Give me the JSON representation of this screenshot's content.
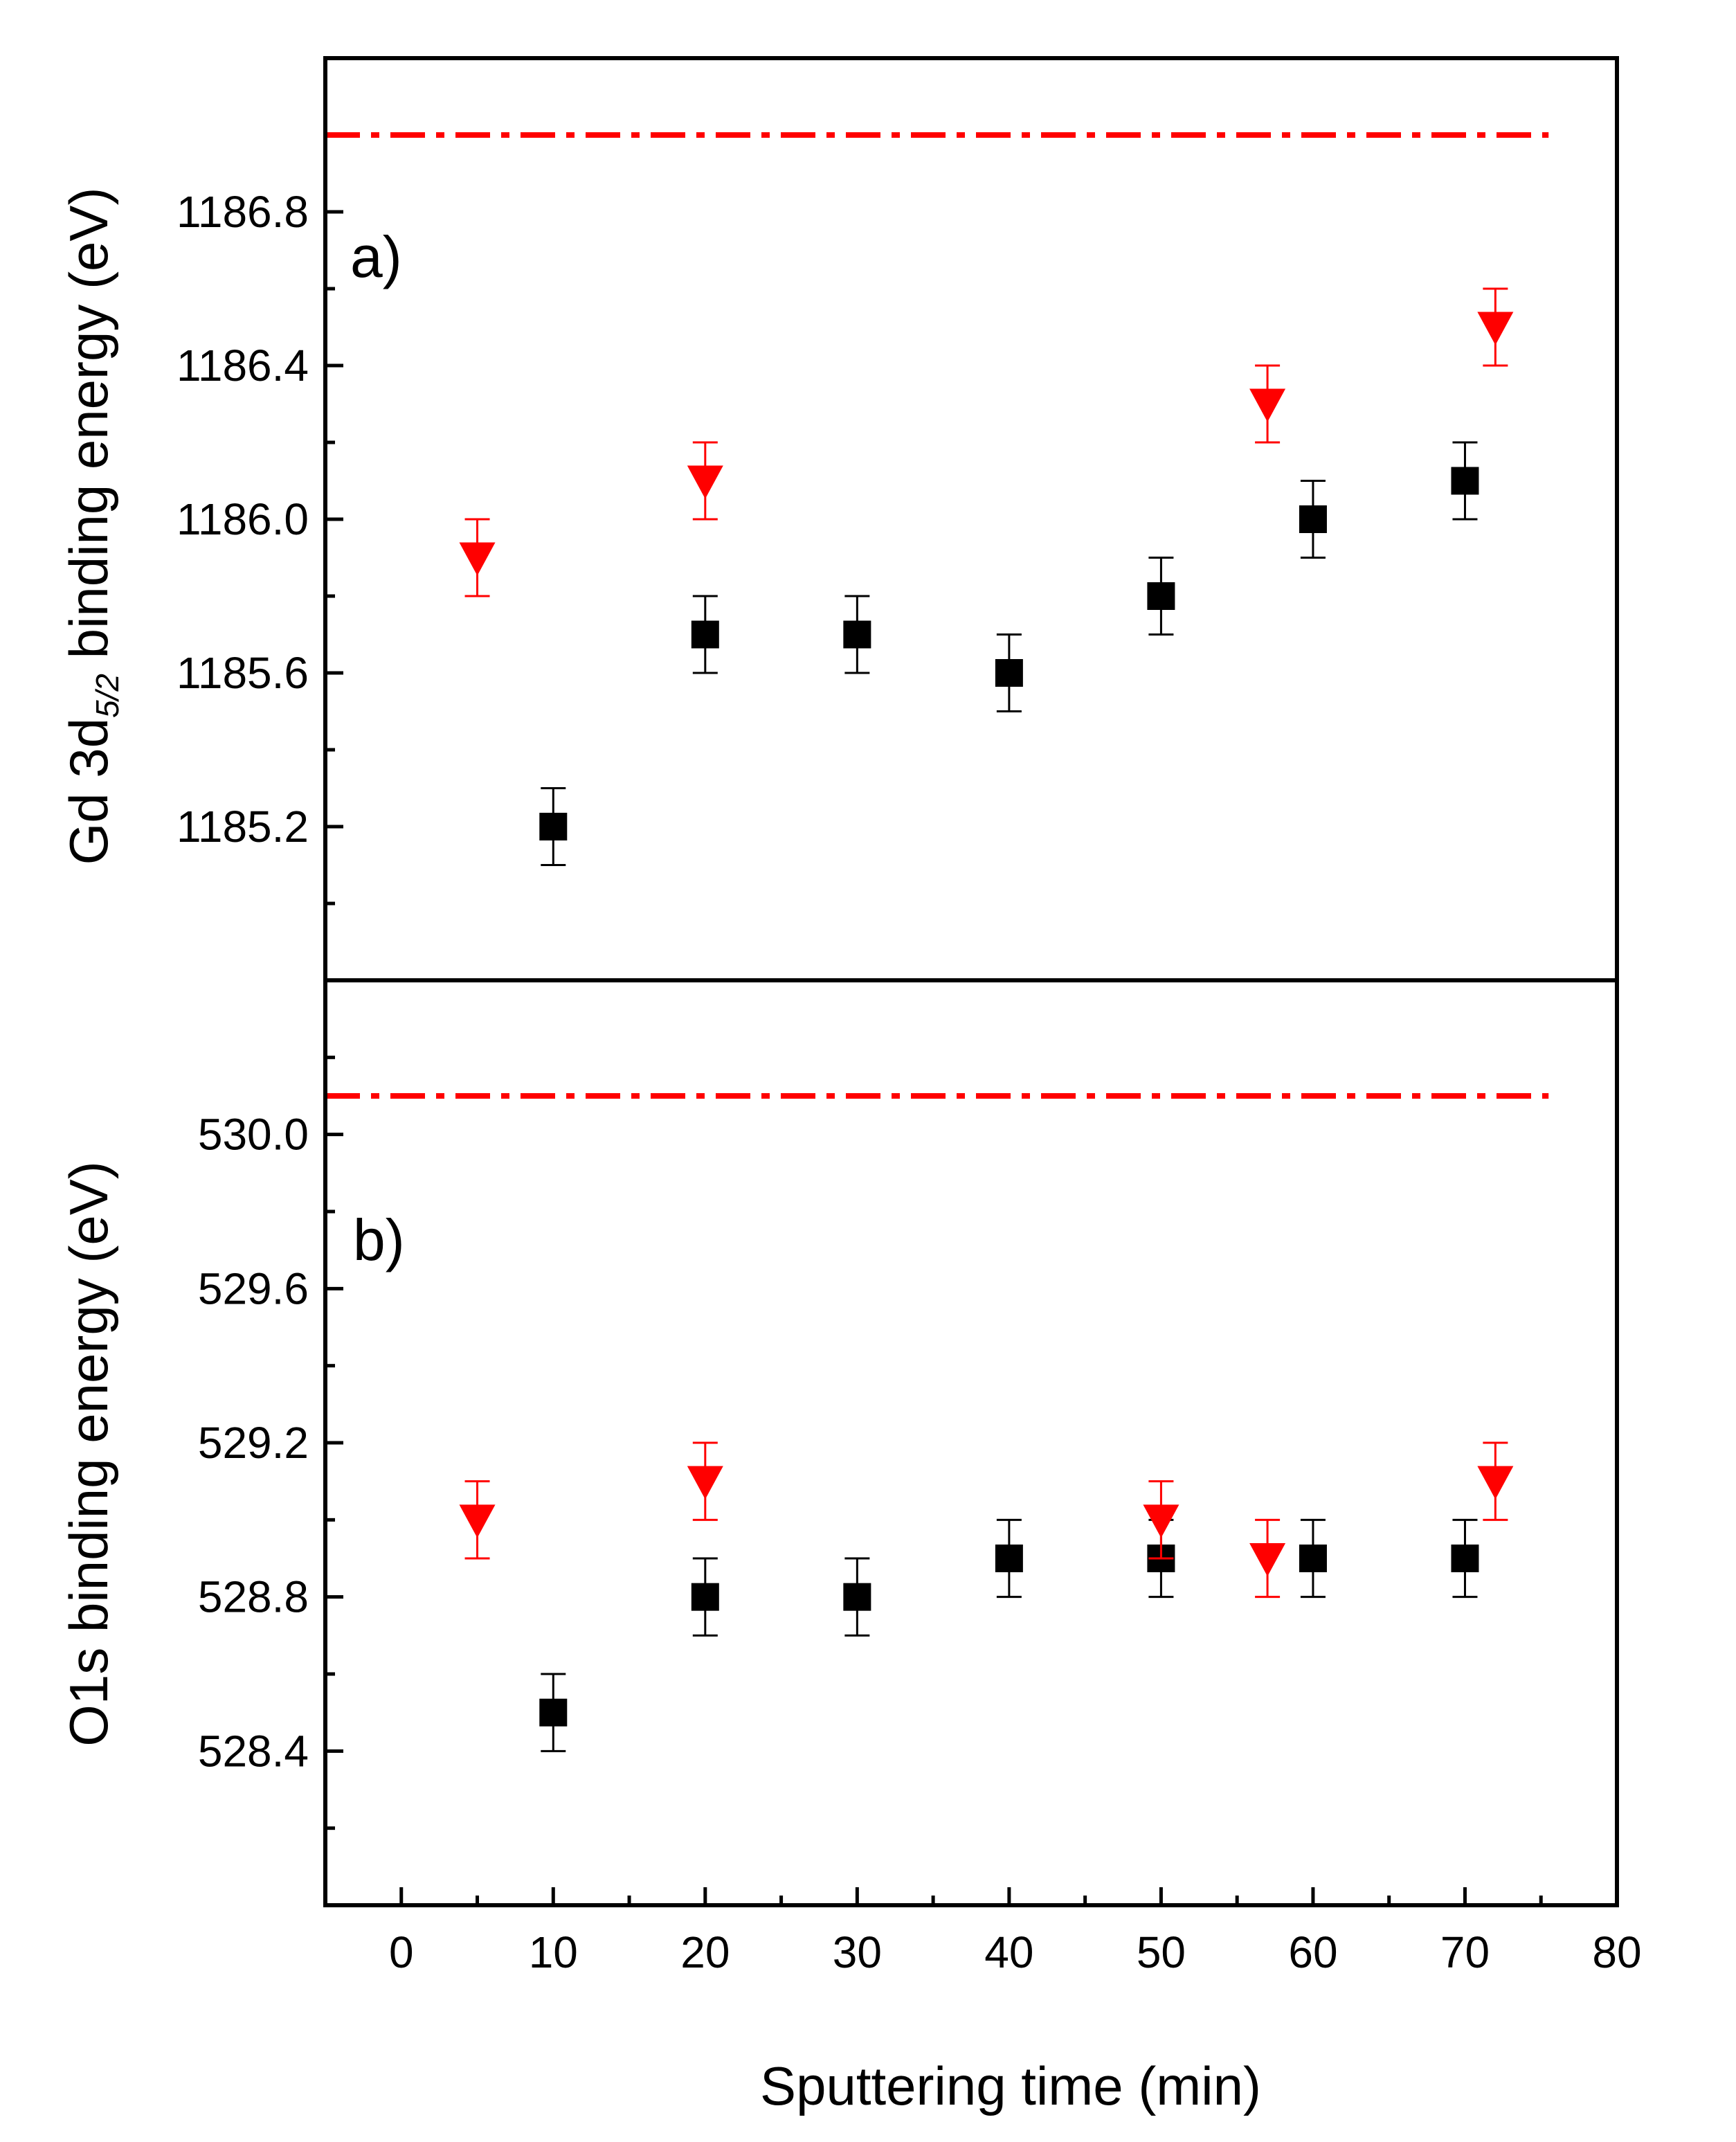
{
  "chart_data": [
    {
      "panel": "a)",
      "type": "scatter",
      "ylabel": {
        "main": "Gd 3d",
        "subscript": "5/2",
        "rest": " binding energy (eV)"
      },
      "ylim": [
        1184.8,
        1187.2
      ],
      "yticks": [
        1185.2,
        1185.6,
        1186.0,
        1186.4,
        1186.8
      ],
      "yticks_minor": [
        1185.0,
        1185.4,
        1185.8,
        1186.2,
        1186.6,
        1187.0
      ],
      "series": [
        {
          "name": "squares",
          "marker": "square",
          "color": "#000000",
          "x": [
            10,
            20,
            30,
            40,
            50,
            60,
            70
          ],
          "y": [
            1185.2,
            1185.7,
            1185.7,
            1185.6,
            1185.8,
            1186.0,
            1186.1
          ],
          "err": [
            0.1,
            0.1,
            0.1,
            0.1,
            0.1,
            0.1,
            0.1
          ]
        },
        {
          "name": "triangles",
          "marker": "triangle-down",
          "color": "#ff0000",
          "x": [
            5,
            20,
            57,
            72
          ],
          "y": [
            1185.9,
            1186.1,
            1186.3,
            1186.5
          ],
          "err": [
            0.1,
            0.1,
            0.1,
            0.1
          ]
        }
      ],
      "reference_line": {
        "y": 1187.0,
        "x_range": [
          -5,
          75.5
        ],
        "color": "#ff0000",
        "style": "dash-dot"
      }
    },
    {
      "panel": "b)",
      "type": "scatter",
      "ylabel": {
        "main": "O1s binding energy (eV)"
      },
      "ylim": [
        528.0,
        530.4
      ],
      "yticks": [
        528.4,
        528.8,
        529.2,
        529.6,
        530.0
      ],
      "yticks_minor": [
        528.2,
        528.6,
        529.0,
        529.4,
        529.8,
        530.2
      ],
      "series": [
        {
          "name": "squares",
          "marker": "square",
          "color": "#000000",
          "x": [
            10,
            20,
            30,
            40,
            50,
            60,
            70
          ],
          "y": [
            528.5,
            528.8,
            528.8,
            528.9,
            528.9,
            528.9,
            528.9
          ],
          "err": [
            0.1,
            0.1,
            0.1,
            0.1,
            0.1,
            0.1,
            0.1
          ]
        },
        {
          "name": "triangles",
          "marker": "triangle-down",
          "color": "#ff0000",
          "x": [
            5,
            20,
            50,
            57,
            72
          ],
          "y": [
            529.0,
            529.1,
            529.0,
            528.9,
            529.1
          ],
          "err": [
            0.1,
            0.1,
            0.1,
            0.1,
            0.1
          ]
        }
      ],
      "reference_line": {
        "y": 530.1,
        "x_range": [
          -5,
          75.5
        ],
        "color": "#ff0000",
        "style": "dash-dot"
      }
    }
  ],
  "x_axis": {
    "label": "Sputtering time (min)",
    "xlim": [
      -5,
      80
    ],
    "ticks": [
      0,
      10,
      20,
      30,
      40,
      50,
      60,
      70,
      80
    ],
    "ticks_minor": [
      5,
      15,
      25,
      35,
      45,
      55,
      65,
      75
    ]
  }
}
